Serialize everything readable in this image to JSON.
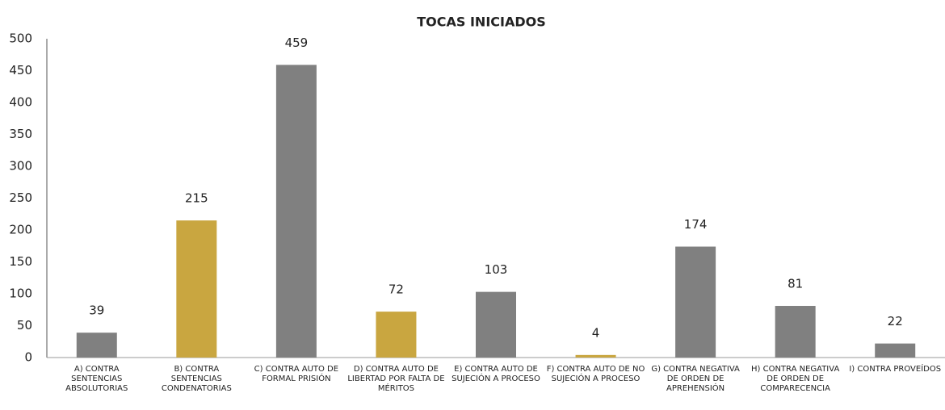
{
  "chart_data": {
    "type": "bar",
    "title": "TOCAS INICIADOS",
    "categories": [
      "A) CONTRA SENTENCIAS ABSOLUTORIAS",
      "B) CONTRA SENTENCIAS CONDENATORIAS",
      "C) CONTRA AUTO DE FORMAL PRISIÓN",
      "D) CONTRA AUTO DE LIBERTAD POR FALTA DE MÉRITOS",
      "E) CONTRA AUTO DE SUJECIÓN A PROCESO",
      "F) CONTRA AUTO DE NO SUJECIÓN A PROCESO",
      "G) CONTRA NEGATIVA DE ORDEN DE APREHENSIÓN",
      "H) CONTRA NEGATIVA DE ORDEN DE COMPARECENCIA",
      "I) CONTRA PROVEÍDOS"
    ],
    "values": [
      39,
      215,
      459,
      72,
      103,
      4,
      174,
      81,
      22
    ],
    "colors": [
      "#808080",
      "#c9a640",
      "#808080",
      "#c9a640",
      "#808080",
      "#c9a640",
      "#808080",
      "#808080",
      "#808080"
    ],
    "ylim": [
      0,
      500
    ],
    "yticks": [
      0,
      50,
      100,
      150,
      200,
      250,
      300,
      350,
      400,
      450,
      500
    ],
    "grid": false
  }
}
